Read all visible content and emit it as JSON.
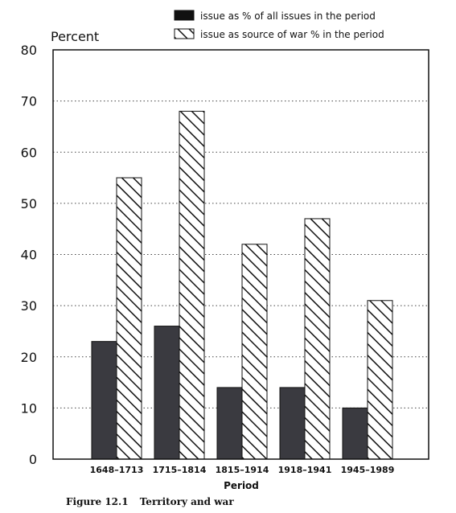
{
  "chart_data": {
    "type": "bar",
    "categories": [
      "1648–1713",
      "1715–1814",
      "1815–1914",
      "1918–1941",
      "1945–1989"
    ],
    "series": [
      {
        "name": "issue as % of all issues in the period",
        "values": [
          23,
          26,
          14,
          14,
          10
        ],
        "fill": "solid",
        "color": "#3a3a40"
      },
      {
        "name": "issue as source of war % in the period",
        "values": [
          55,
          68,
          42,
          47,
          31
        ],
        "fill": "hatched",
        "color": "#111111"
      }
    ],
    "ylabel": "Percent",
    "xlabel": "Period",
    "ylim": [
      0,
      80
    ],
    "yticks": [
      0,
      10,
      20,
      30,
      40,
      50,
      60,
      70,
      80
    ],
    "grid": true,
    "legend_position": "top-right",
    "caption_number": "Figure 12.1",
    "caption_text": "Territory and war"
  }
}
